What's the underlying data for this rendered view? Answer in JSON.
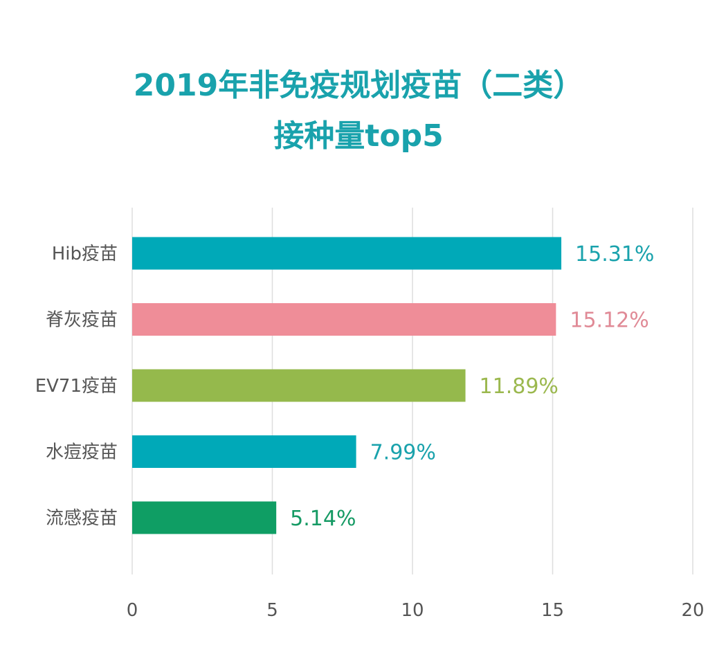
{
  "title": {
    "line1": "2019年非免疫规划疫苗（二类）",
    "line2": "接种量top5"
  },
  "chart_data": {
    "type": "bar",
    "orientation": "horizontal",
    "title": "2019年非免疫规划疫苗（二类）接种量top5",
    "categories": [
      "Hib疫苗",
      "脊灰疫苗",
      "EV71疫苗",
      "水痘疫苗",
      "流感疫苗"
    ],
    "values": [
      15.31,
      15.12,
      11.89,
      7.99,
      5.14
    ],
    "value_labels": [
      "15.31%",
      "15.12%",
      "11.89%",
      "7.99%",
      "5.14%"
    ],
    "colors": [
      "#00a9b8",
      "#ef8d98",
      "#95b94c",
      "#00a9b8",
      "#0f9e64"
    ],
    "label_colors": [
      "#19a2ac",
      "#e08a96",
      "#9bb84e",
      "#19a2ac",
      "#159a64"
    ],
    "xlim": [
      0,
      20
    ],
    "xticks": [
      0,
      5,
      10,
      15,
      20
    ],
    "xtick_labels": [
      "0",
      "5",
      "10",
      "15",
      "20"
    ],
    "grid": true,
    "xlabel": "",
    "ylabel": ""
  }
}
